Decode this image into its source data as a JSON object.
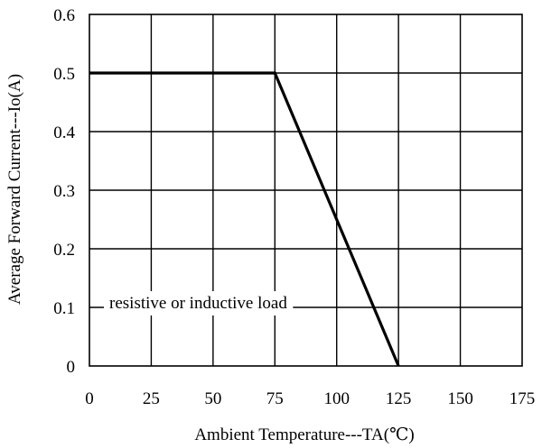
{
  "chart_data": {
    "type": "line",
    "xlabel": "Ambient Temperature---TA(℃)",
    "ylabel": "Average Forward Current---Io(A)",
    "xlim": [
      0,
      175
    ],
    "ylim": [
      0,
      0.6
    ],
    "x_ticks": [
      0,
      25,
      50,
      75,
      100,
      125,
      150,
      175
    ],
    "y_ticks": [
      0,
      0.1,
      0.2,
      0.3,
      0.4,
      0.5,
      0.6
    ],
    "y_tick_labels": [
      "0",
      "0.1",
      "0.2",
      "0.3",
      "0.4",
      "0.5",
      "0.6"
    ],
    "grid": true,
    "series": [
      {
        "x": [
          0,
          75,
          125
        ],
        "y": [
          0.5,
          0.5,
          0
        ],
        "color": "#000000"
      }
    ],
    "annotations": [
      {
        "text": "resistive or inductive load",
        "x": 44,
        "y": 0.1
      }
    ]
  }
}
